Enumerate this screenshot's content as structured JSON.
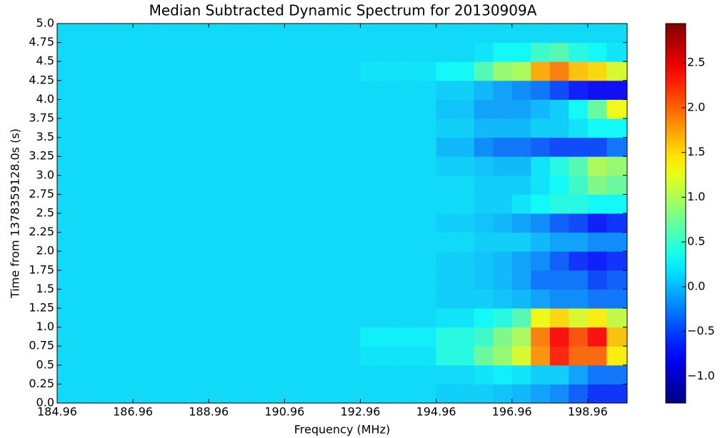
{
  "chart_data": {
    "type": "heatmap",
    "title": "Median Subtracted Dynamic Spectrum for 20130909A",
    "x_label": "Frequency (MHz)",
    "y_label": "Time from 1378359128.0s (s)",
    "colormap": "jet",
    "xlim": [
      184.96,
      200.0
    ],
    "xticks": [
      184.96,
      186.96,
      188.96,
      190.96,
      192.96,
      194.96,
      196.96,
      198.96
    ],
    "ylim": [
      0,
      5
    ],
    "yticks": [
      {
        "value": 0,
        "label": "0.0"
      },
      0.25,
      0.5,
      0.75,
      {
        "value": 1,
        "label": "1.0"
      },
      1.25,
      1.5,
      1.75,
      {
        "value": 2,
        "label": "2.0"
      },
      2.25,
      2.5,
      2.75,
      {
        "value": 3,
        "label": "3.0"
      },
      3.25,
      3.5,
      3.75,
      {
        "value": 4,
        "label": "4.0"
      },
      4.25,
      4.5,
      4.75,
      {
        "value": 5,
        "label": "5.0"
      }
    ],
    "x_edges": [
      184.96,
      186.96,
      188.96,
      190.96,
      192.96,
      194.96,
      195.96,
      196.46,
      196.96,
      197.46,
      197.96,
      198.46,
      198.96,
      199.46,
      200.0
    ],
    "y_edges": [
      0,
      0.25,
      0.5,
      0.75,
      1,
      1.25,
      1.5,
      1.75,
      2,
      2.25,
      2.5,
      2.75,
      3,
      3.25,
      3.5,
      3.75,
      4,
      4.25,
      4.5,
      4.75,
      5
    ],
    "values": [
      [
        0.15,
        0.15,
        0.15,
        0.15,
        0.15,
        0.1,
        0.1,
        0.05,
        0,
        -0.1,
        -0.2,
        -0.4,
        -0.6,
        -0.6
      ],
      [
        0.15,
        0.15,
        0.15,
        0.15,
        0.15,
        0.15,
        0.2,
        0.25,
        0.2,
        0.1,
        0.1,
        -0.1,
        -0.3,
        -0.3
      ],
      [
        0.15,
        0.15,
        0.15,
        0.15,
        0.2,
        0.4,
        0.7,
        0.9,
        1.2,
        1.8,
        2.3,
        2.0,
        2.0,
        1.4
      ],
      [
        0.15,
        0.15,
        0.15,
        0.15,
        0.25,
        0.4,
        0.5,
        0.8,
        1.0,
        1.9,
        2.4,
        2.1,
        2.4,
        1.6
      ],
      [
        0.15,
        0.15,
        0.15,
        0.15,
        0.15,
        0.2,
        0.3,
        0.4,
        0.6,
        1.3,
        1.5,
        1.2,
        1.4,
        1.1
      ],
      [
        0.15,
        0.15,
        0.15,
        0.15,
        0.15,
        0.1,
        0.1,
        0.05,
        0,
        -0.1,
        -0.2,
        -0.2,
        -0.3,
        -0.3
      ],
      [
        0.15,
        0.15,
        0.15,
        0.15,
        0.15,
        0.1,
        0.05,
        0,
        -0.1,
        -0.3,
        -0.3,
        -0.3,
        -0.5,
        -0.4
      ],
      [
        0.15,
        0.15,
        0.15,
        0.15,
        0.15,
        0.1,
        0.05,
        0,
        -0.1,
        -0.2,
        -0.4,
        -0.6,
        -0.7,
        -0.6
      ],
      [
        0.15,
        0.15,
        0.15,
        0.15,
        0.15,
        0.15,
        0.1,
        0.1,
        0.1,
        0,
        -0.1,
        -0.1,
        -0.2,
        -0.2
      ],
      [
        0.15,
        0.15,
        0.15,
        0.15,
        0.15,
        0.1,
        0.05,
        0,
        -0.1,
        -0.2,
        -0.4,
        -0.5,
        -0.7,
        -0.6
      ],
      [
        0.15,
        0.15,
        0.15,
        0.15,
        0.15,
        0.15,
        0.1,
        0.1,
        0.2,
        0.3,
        0.4,
        0.4,
        0.3,
        0.3
      ],
      [
        0.15,
        0.15,
        0.15,
        0.15,
        0.15,
        0.15,
        0.1,
        0.1,
        0.1,
        0.2,
        0.3,
        0.5,
        0.8,
        0.7
      ],
      [
        0.15,
        0.15,
        0.15,
        0.15,
        0.15,
        0.1,
        0.05,
        0,
        0,
        0.2,
        0.4,
        0.6,
        1.0,
        0.9
      ],
      [
        0.15,
        0.15,
        0.15,
        0.15,
        0.15,
        0,
        -0.2,
        -0.3,
        -0.3,
        -0.4,
        -0.5,
        -0.5,
        -0.5,
        -0.3
      ],
      [
        0.15,
        0.15,
        0.15,
        0.15,
        0.15,
        0.1,
        0,
        0,
        0,
        0.1,
        0.1,
        0.2,
        0.3,
        0.3
      ],
      [
        0.15,
        0.15,
        0.15,
        0.15,
        0.15,
        0.05,
        -0.1,
        -0.1,
        -0.1,
        0,
        0.1,
        0.3,
        0.7,
        1.3
      ],
      [
        0.15,
        0.15,
        0.15,
        0.15,
        0.15,
        0.1,
        0,
        -0.1,
        -0.2,
        -0.3,
        -0.5,
        -0.7,
        -0.8,
        -0.8
      ],
      [
        0.15,
        0.15,
        0.15,
        0.15,
        0.2,
        0.3,
        0.6,
        0.9,
        1.0,
        1.7,
        1.9,
        1.6,
        1.5,
        1.2
      ],
      [
        0.15,
        0.15,
        0.15,
        0.15,
        0.15,
        0.15,
        0.2,
        0.3,
        0.3,
        0.5,
        0.6,
        0.4,
        0.3,
        0.2
      ],
      [
        0.15,
        0.15,
        0.15,
        0.15,
        0.15,
        0.15,
        0.15,
        0.15,
        0.15,
        0.15,
        0.15,
        0.15,
        0.15,
        0.15
      ]
    ],
    "colorbar": {
      "clim": [
        -1.3,
        2.94
      ],
      "ticks": [
        {
          "value": -1,
          "label": "−1.0"
        },
        {
          "value": -0.5,
          "label": "−0.5"
        },
        {
          "value": 0,
          "label": "0.0"
        },
        0.5,
        {
          "value": 1,
          "label": "1.0"
        },
        1.5,
        {
          "value": 2,
          "label": "2.0"
        },
        2.5
      ]
    }
  }
}
